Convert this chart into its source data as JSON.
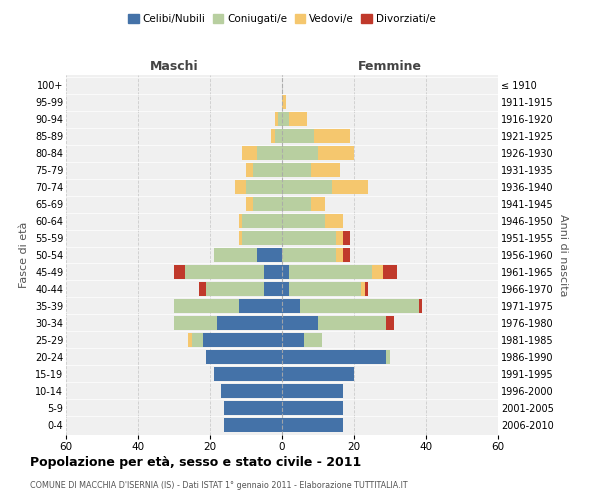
{
  "age_groups": [
    "0-4",
    "5-9",
    "10-14",
    "15-19",
    "20-24",
    "25-29",
    "30-34",
    "35-39",
    "40-44",
    "45-49",
    "50-54",
    "55-59",
    "60-64",
    "65-69",
    "70-74",
    "75-79",
    "80-84",
    "85-89",
    "90-94",
    "95-99",
    "100+"
  ],
  "birth_years": [
    "2006-2010",
    "2001-2005",
    "1996-2000",
    "1991-1995",
    "1986-1990",
    "1981-1985",
    "1976-1980",
    "1971-1975",
    "1966-1970",
    "1961-1965",
    "1956-1960",
    "1951-1955",
    "1946-1950",
    "1941-1945",
    "1936-1940",
    "1931-1935",
    "1926-1930",
    "1921-1925",
    "1916-1920",
    "1911-1915",
    "≤ 1910"
  ],
  "maschi": {
    "celibi": [
      16,
      16,
      17,
      19,
      21,
      22,
      18,
      12,
      5,
      5,
      7,
      0,
      0,
      0,
      0,
      0,
      0,
      0,
      0,
      0,
      0
    ],
    "coniugati": [
      0,
      0,
      0,
      0,
      0,
      3,
      12,
      18,
      16,
      22,
      12,
      11,
      11,
      8,
      10,
      8,
      7,
      2,
      1,
      0,
      0
    ],
    "vedovi": [
      0,
      0,
      0,
      0,
      0,
      1,
      0,
      0,
      0,
      0,
      0,
      1,
      1,
      2,
      3,
      2,
      4,
      1,
      1,
      0,
      0
    ],
    "divorziati": [
      0,
      0,
      0,
      0,
      0,
      0,
      0,
      0,
      2,
      3,
      0,
      0,
      0,
      0,
      0,
      0,
      0,
      0,
      0,
      0,
      0
    ]
  },
  "femmine": {
    "nubili": [
      17,
      17,
      17,
      20,
      29,
      6,
      10,
      5,
      2,
      2,
      0,
      0,
      0,
      0,
      0,
      0,
      0,
      0,
      0,
      0,
      0
    ],
    "coniugate": [
      0,
      0,
      0,
      0,
      1,
      5,
      19,
      33,
      20,
      23,
      15,
      15,
      12,
      8,
      14,
      8,
      10,
      9,
      2,
      0,
      0
    ],
    "vedove": [
      0,
      0,
      0,
      0,
      0,
      0,
      0,
      0,
      1,
      3,
      2,
      2,
      5,
      4,
      10,
      8,
      10,
      10,
      5,
      1,
      0
    ],
    "divorziate": [
      0,
      0,
      0,
      0,
      0,
      0,
      2,
      1,
      1,
      4,
      2,
      2,
      0,
      0,
      0,
      0,
      0,
      0,
      0,
      0,
      0
    ]
  },
  "colors": {
    "celibi": "#4472a8",
    "coniugati": "#b8cfa0",
    "vedovi": "#f5c76e",
    "divorziati": "#c0392b"
  },
  "xlim": 60,
  "title": "Popolazione per età, sesso e stato civile - 2011",
  "subtitle": "COMUNE DI MACCHIA D'ISERNIA (IS) - Dati ISTAT 1° gennaio 2011 - Elaborazione TUTTITALIA.IT",
  "ylabel_left": "Fasce di età",
  "ylabel_right": "Anni di nascita",
  "xlabel_maschi": "Maschi",
  "xlabel_femmine": "Femmine",
  "bg_color": "#f0f0f0",
  "grid_color": "#cccccc"
}
